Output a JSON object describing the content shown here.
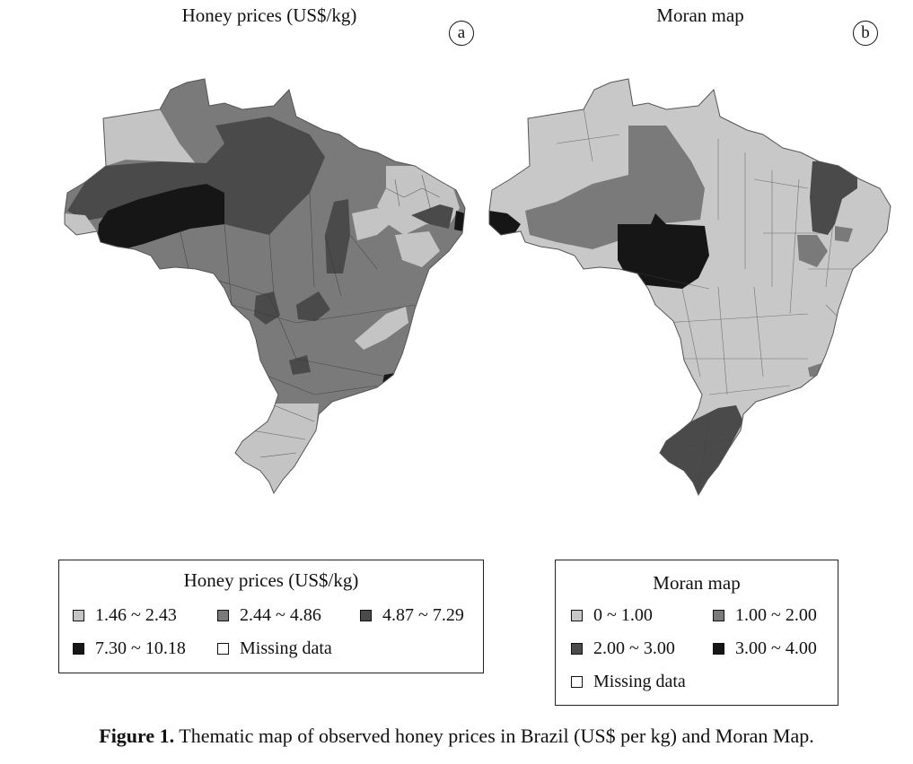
{
  "panel_a": {
    "title": "Honey prices (US$/kg)",
    "badge": "a"
  },
  "panel_b": {
    "title": "Moran map",
    "badge": "b"
  },
  "legend_a": {
    "title": "Honey prices (US$/kg)",
    "items": [
      {
        "label": "1.46 ~ 2.43",
        "color": "#c4c4c4"
      },
      {
        "label": "2.44 ~ 4.86",
        "color": "#7a7a7a"
      },
      {
        "label": "4.87 ~ 7.29",
        "color": "#4a4a4a"
      },
      {
        "label": "7.30 ~ 10.18",
        "color": "#161616"
      },
      {
        "label": "Missing data",
        "color": "#ffffff"
      }
    ]
  },
  "legend_b": {
    "title": "Moran map",
    "items": [
      {
        "label": "0 ~ 1.00",
        "color": "#c8c8c8"
      },
      {
        "label": "1.00 ~ 2.00",
        "color": "#7a7a7a"
      },
      {
        "label": "2.00 ~ 3.00",
        "color": "#4a4a4a"
      },
      {
        "label": "3.00 ~ 4.00",
        "color": "#161616"
      },
      {
        "label": "Missing data",
        "color": "#ffffff"
      }
    ]
  },
  "caption": {
    "label": "Figure 1.",
    "text": " Thematic map of observed honey prices in Brazil (US$ per kg) and Moran Map."
  }
}
